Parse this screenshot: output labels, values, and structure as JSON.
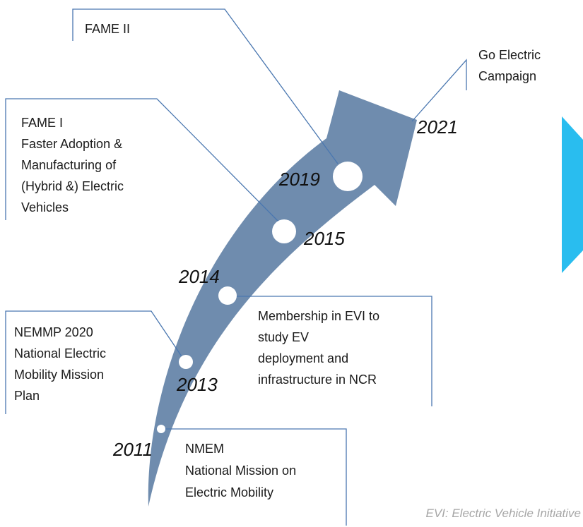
{
  "milestones": [
    {
      "year": "2011",
      "lines": [
        "NMEM",
        "National Mission on",
        "Electric Mobility"
      ]
    },
    {
      "year": "2013",
      "lines": [
        "NEMMP 2020",
        "National Electric",
        "Mobility Mission",
        "Plan"
      ]
    },
    {
      "year": "2014",
      "lines": [
        "Membership in EVI to",
        "study EV",
        "deployment and",
        "infrastructure in NCR"
      ]
    },
    {
      "year": "2015",
      "lines": [
        "FAME I",
        "Faster Adoption &",
        "Manufacturing of",
        "(Hybrid &) Electric",
        "Vehicles"
      ]
    },
    {
      "year": "2019",
      "lines": [
        "FAME II"
      ]
    },
    {
      "year": "2021",
      "lines": [
        "Go Electric",
        "Campaign"
      ]
    }
  ],
  "footnote": "EVI: Electric Vehicle Initiative"
}
